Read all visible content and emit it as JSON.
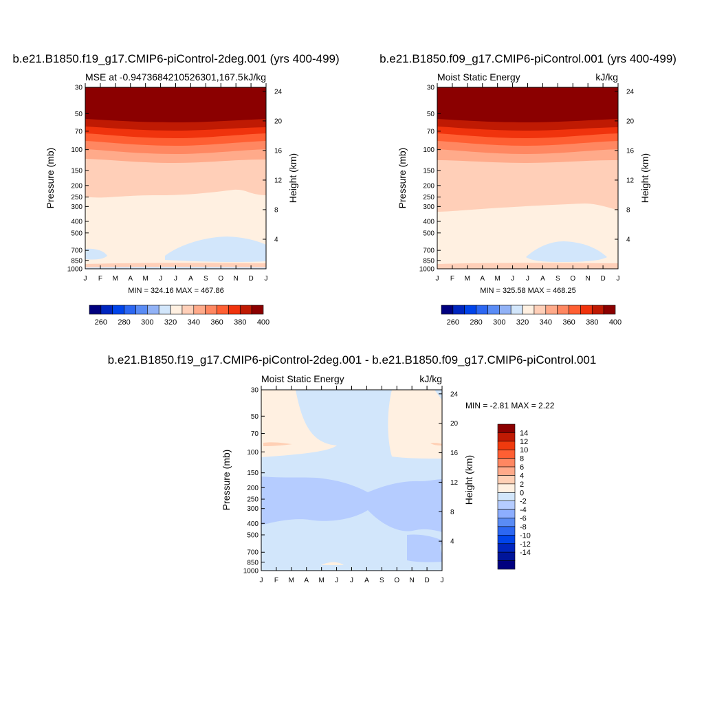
{
  "months": [
    "J",
    "F",
    "M",
    "A",
    "M",
    "J",
    "J",
    "A",
    "S",
    "O",
    "N",
    "D",
    "J"
  ],
  "pressure_ticks": [
    30,
    50,
    70,
    100,
    150,
    200,
    250,
    300,
    400,
    500,
    700,
    850,
    1000
  ],
  "height_ticks": [
    24,
    20,
    16,
    12,
    8,
    4
  ],
  "axis_labels": {
    "pressure": "Pressure (mb)",
    "height": "Height (km)"
  },
  "colors": {
    "mse": [
      "#00007f",
      "#0026bf",
      "#0044ea",
      "#2c67f2",
      "#5a8cf5",
      "#91b2f6",
      "#d2e6fb",
      "#fff0e1",
      "#ffcfb8",
      "#ffaa8a",
      "#ff8761",
      "#ff5f33",
      "#f0330d",
      "#bf1a03",
      "#8b0000"
    ],
    "diff": [
      "#00007f",
      "#00159a",
      "#0026bf",
      "#0044ea",
      "#2c67f2",
      "#5a8cf5",
      "#8daeff",
      "#b5ccff",
      "#d2e6fb",
      "#fff0e1",
      "#ffd0b5",
      "#ffaa8a",
      "#ff8761",
      "#ff5f33",
      "#ef3a0e",
      "#bf1a03",
      "#8b0000"
    ]
  },
  "panels": [
    {
      "title": "b.e21.B1850.f19_g17.CMIP6-piControl-2deg.001 (yrs 400-499)",
      "left_label": "MSE at -0.9473684210526301,167.5",
      "right_label": "kJ/kg",
      "stats": "MIN = 324.16 MAX = 467.86"
    },
    {
      "title": "b.e21.B1850.f09_g17.CMIP6-piControl.001 (yrs 400-499)",
      "left_label": "Moist Static Energy",
      "right_label": "kJ/kg",
      "stats": "MIN = 325.58 MAX = 468.25"
    },
    {
      "title": "b.e21.B1850.f19_g17.CMIP6-piControl-2deg.001 - b.e21.B1850.f09_g17.CMIP6-piControl.001",
      "left_label": "Moist Static Energy",
      "right_label": "kJ/kg",
      "stats": "MIN =  -2.81 MAX =   2.22"
    }
  ],
  "colorbar_mse_labels": [
    "260",
    "280",
    "300",
    "320",
    "340",
    "360",
    "380",
    "400"
  ],
  "colorbar_diff_labels": [
    "14",
    "12",
    "10",
    "8",
    "6",
    "4",
    "2",
    "0",
    "-2",
    "-4",
    "-6",
    "-8",
    "-10",
    "-12",
    "-14"
  ],
  "chart_data": [
    {
      "type": "heatmap",
      "title": "b.e21.B1850.f19_g17.CMIP6-piControl-2deg.001 (yrs 400-499)",
      "subtitle": "MSE at -0.9473684210526301,167.5",
      "units": "kJ/kg",
      "xlabel": "",
      "ylabel": "Pressure (mb)",
      "ylabel_right": "Height (km)",
      "x": [
        "J",
        "F",
        "M",
        "A",
        "M",
        "J",
        "J",
        "A",
        "S",
        "O",
        "N",
        "D",
        "J"
      ],
      "y_pressure_mb": [
        1000,
        30
      ],
      "y_scale": "log",
      "contour_levels": [
        255,
        265,
        275,
        285,
        295,
        305,
        315,
        325,
        335,
        345,
        355,
        365,
        375,
        385,
        395,
        405
      ],
      "min": 324.16,
      "max": 467.86,
      "level_boundaries_mb": [
        {
          "level": 325,
          "pressure_mb": [
            710,
            740,
            760,
            700,
            560,
            520,
            525,
            560,
            660
          ],
          "month_index": [
            0,
            1,
            5,
            6,
            8,
            9,
            10,
            11,
            12
          ]
        },
        {
          "level": 335,
          "pressure_mb": [
            230,
            240,
            230,
            220,
            215,
            205,
            200,
            210,
            225
          ],
          "month_index": [
            0,
            1,
            3,
            5,
            7,
            9,
            10,
            11,
            12
          ]
        },
        {
          "level": 345,
          "pressure_mb": [
            112,
            114,
            117,
            119,
            120,
            117,
            114,
            112,
            110
          ],
          "month_index": [
            0,
            2,
            4,
            6,
            8,
            9,
            10,
            11,
            12
          ]
        },
        {
          "level": 355,
          "pressure_mb": [
            90,
            93,
            97,
            101,
            102,
            100,
            96,
            92,
            90
          ]
        },
        {
          "level": 365,
          "pressure_mb": [
            79,
            82,
            86,
            90,
            91,
            89,
            85,
            81,
            79
          ]
        },
        {
          "level": 375,
          "pressure_mb": [
            70,
            73,
            77,
            80,
            81,
            79,
            75,
            71,
            69
          ]
        },
        {
          "level": 385,
          "pressure_mb": [
            62,
            65,
            68,
            71,
            72,
            70,
            67,
            63,
            61
          ]
        },
        {
          "level": 395,
          "pressure_mb": [
            55,
            58,
            61,
            63,
            64,
            62,
            59,
            56,
            54
          ]
        }
      ]
    },
    {
      "type": "heatmap",
      "title": "b.e21.B1850.f09_g17.CMIP6-piControl.001 (yrs 400-499)",
      "subtitle": "Moist Static Energy",
      "units": "kJ/kg",
      "xlabel": "",
      "ylabel": "Pressure (mb)",
      "ylabel_right": "Height (km)",
      "x": [
        "J",
        "F",
        "M",
        "A",
        "M",
        "J",
        "J",
        "A",
        "S",
        "O",
        "N",
        "D",
        "J"
      ],
      "y_pressure_mb": [
        1000,
        30
      ],
      "y_scale": "log",
      "contour_levels": [
        255,
        265,
        275,
        285,
        295,
        305,
        315,
        325,
        335,
        345,
        355,
        365,
        375,
        385,
        395,
        405
      ],
      "min": 325.58,
      "max": 468.25
    },
    {
      "type": "heatmap",
      "title": "b.e21.B1850.f19_g17.CMIP6-piControl-2deg.001 - b.e21.B1850.f09_g17.CMIP6-piControl.001",
      "subtitle": "Moist Static Energy",
      "units": "kJ/kg",
      "xlabel": "",
      "ylabel": "Pressure (mb)",
      "ylabel_right": "Height (km)",
      "x": [
        "J",
        "F",
        "M",
        "A",
        "M",
        "J",
        "J",
        "A",
        "S",
        "O",
        "N",
        "D",
        "J"
      ],
      "y_pressure_mb": [
        1000,
        30
      ],
      "y_scale": "log",
      "contour_levels": [
        -15,
        -13,
        -11,
        -9,
        -7,
        -5,
        -3,
        -1,
        1,
        3,
        5,
        7,
        9,
        11,
        13,
        15
      ],
      "min": -2.81,
      "max": 2.22
    }
  ]
}
